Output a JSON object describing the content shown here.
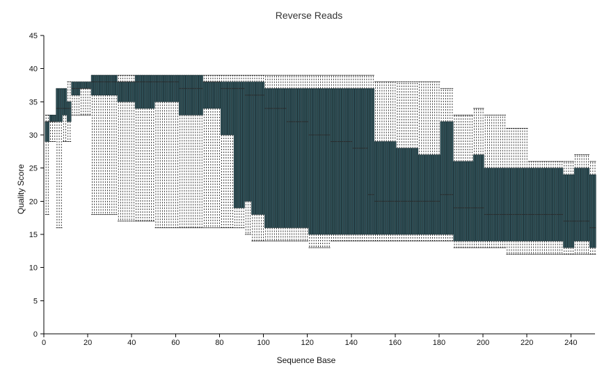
{
  "chart_data": {
    "type": "boxplot",
    "title": "Reverse Reads",
    "xlabel": "Sequence Base",
    "ylabel": "Quality Score",
    "xlim": [
      0,
      251
    ],
    "ylim": [
      0,
      45
    ],
    "xticks": [
      "0",
      "20",
      "40",
      "60",
      "80",
      "100",
      "120",
      "140",
      "160",
      "180",
      "200",
      "220",
      "240"
    ],
    "yticks": [
      "0",
      "5",
      "10",
      "15",
      "20",
      "25",
      "30",
      "35",
      "40",
      "45"
    ],
    "colors": {
      "box_fill": "#2f4f56",
      "box_edge": "#1e3338",
      "median": "#2a2a2a",
      "whisker": "#000000"
    },
    "positions": {
      "start": 1,
      "end": 251,
      "step": 1
    },
    "segments": [
      {
        "from": 1,
        "to": 2,
        "whisker_low": 18,
        "q1": 29,
        "median": 32,
        "q3": 32,
        "whisker_high": 33
      },
      {
        "from": 3,
        "to": 5,
        "whisker_low": 29,
        "q1": 32,
        "median": 32,
        "q3": 33,
        "whisker_high": 33
      },
      {
        "from": 6,
        "to": 8,
        "whisker_low": 16,
        "q1": 32,
        "median": 34,
        "q3": 37,
        "whisker_high": 37
      },
      {
        "from": 9,
        "to": 10,
        "whisker_low": 29,
        "q1": 33,
        "median": 34,
        "q3": 37,
        "whisker_high": 37
      },
      {
        "from": 11,
        "to": 12,
        "whisker_low": 29,
        "q1": 32,
        "median": 34,
        "q3": 35,
        "whisker_high": 38
      },
      {
        "from": 13,
        "to": 16,
        "whisker_low": 33,
        "q1": 36,
        "median": 37,
        "q3": 38,
        "whisker_high": 38
      },
      {
        "from": 17,
        "to": 21,
        "whisker_low": 33,
        "q1": 37,
        "median": 37,
        "q3": 38,
        "whisker_high": 38
      },
      {
        "from": 22,
        "to": 23,
        "whisker_low": 18,
        "q1": 36,
        "median": 38,
        "q3": 39,
        "whisker_high": 39
      },
      {
        "from": 24,
        "to": 33,
        "whisker_low": 18,
        "q1": 36,
        "median": 38,
        "q3": 39,
        "whisker_high": 39
      },
      {
        "from": 34,
        "to": 41,
        "whisker_low": 17,
        "q1": 35,
        "median": 38,
        "q3": 38,
        "whisker_high": 39
      },
      {
        "from": 42,
        "to": 50,
        "whisker_low": 17,
        "q1": 34,
        "median": 38,
        "q3": 39,
        "whisker_high": 39
      },
      {
        "from": 51,
        "to": 61,
        "whisker_low": 16,
        "q1": 35,
        "median": 38,
        "q3": 39,
        "whisker_high": 39
      },
      {
        "from": 62,
        "to": 72,
        "whisker_low": 16,
        "q1": 33,
        "median": 37,
        "q3": 39,
        "whisker_high": 39
      },
      {
        "from": 73,
        "to": 80,
        "whisker_low": 16,
        "q1": 34,
        "median": 38,
        "q3": 38,
        "whisker_high": 39
      },
      {
        "from": 81,
        "to": 86,
        "whisker_low": 16,
        "q1": 30,
        "median": 37,
        "q3": 38,
        "whisker_high": 39
      },
      {
        "from": 87,
        "to": 91,
        "whisker_low": 16,
        "q1": 19,
        "median": 37,
        "q3": 38,
        "whisker_high": 39
      },
      {
        "from": 92,
        "to": 94,
        "whisker_low": 15,
        "q1": 20,
        "median": 36,
        "q3": 38,
        "whisker_high": 39
      },
      {
        "from": 95,
        "to": 100,
        "whisker_low": 14,
        "q1": 18,
        "median": 36,
        "q3": 38,
        "whisker_high": 39
      },
      {
        "from": 101,
        "to": 110,
        "whisker_low": 14,
        "q1": 16,
        "median": 34,
        "q3": 37,
        "whisker_high": 39
      },
      {
        "from": 111,
        "to": 120,
        "whisker_low": 14,
        "q1": 16,
        "median": 32,
        "q3": 37,
        "whisker_high": 39
      },
      {
        "from": 121,
        "to": 130,
        "whisker_low": 13,
        "q1": 15,
        "median": 30,
        "q3": 37,
        "whisker_high": 39
      },
      {
        "from": 131,
        "to": 140,
        "whisker_low": 14,
        "q1": 15,
        "median": 29,
        "q3": 37,
        "whisker_high": 39
      },
      {
        "from": 141,
        "to": 147,
        "whisker_low": 14,
        "q1": 15,
        "median": 28,
        "q3": 37,
        "whisker_high": 39
      },
      {
        "from": 148,
        "to": 150,
        "whisker_low": 14,
        "q1": 15,
        "median": 21,
        "q3": 37,
        "whisker_high": 39
      },
      {
        "from": 151,
        "to": 160,
        "whisker_low": 14,
        "q1": 15,
        "median": 20,
        "q3": 29,
        "whisker_high": 38
      },
      {
        "from": 161,
        "to": 170,
        "whisker_low": 14,
        "q1": 15,
        "median": 20,
        "q3": 28,
        "whisker_high": 38
      },
      {
        "from": 171,
        "to": 180,
        "whisker_low": 14,
        "q1": 15,
        "median": 20,
        "q3": 27,
        "whisker_high": 38
      },
      {
        "from": 181,
        "to": 186,
        "whisker_low": 14,
        "q1": 15,
        "median": 21,
        "q3": 32,
        "whisker_high": 37
      },
      {
        "from": 187,
        "to": 195,
        "whisker_low": 13,
        "q1": 14,
        "median": 19,
        "q3": 26,
        "whisker_high": 33
      },
      {
        "from": 196,
        "to": 200,
        "whisker_low": 13,
        "q1": 14,
        "median": 19,
        "q3": 27,
        "whisker_high": 34
      },
      {
        "from": 201,
        "to": 210,
        "whisker_low": 13,
        "q1": 14,
        "median": 18,
        "q3": 25,
        "whisker_high": 33
      },
      {
        "from": 211,
        "to": 220,
        "whisker_low": 12,
        "q1": 14,
        "median": 18,
        "q3": 25,
        "whisker_high": 31
      },
      {
        "from": 221,
        "to": 230,
        "whisker_low": 12,
        "q1": 14,
        "median": 18,
        "q3": 25,
        "whisker_high": 26
      },
      {
        "from": 231,
        "to": 236,
        "whisker_low": 12,
        "q1": 14,
        "median": 18,
        "q3": 25,
        "whisker_high": 26
      },
      {
        "from": 237,
        "to": 241,
        "whisker_low": 12,
        "q1": 13,
        "median": 17,
        "q3": 24,
        "whisker_high": 26
      },
      {
        "from": 242,
        "to": 248,
        "whisker_low": 12,
        "q1": 14,
        "median": 17,
        "q3": 25,
        "whisker_high": 27
      },
      {
        "from": 249,
        "to": 251,
        "whisker_low": 12,
        "q1": 13,
        "median": 16,
        "q3": 24,
        "whisker_high": 26
      }
    ]
  }
}
